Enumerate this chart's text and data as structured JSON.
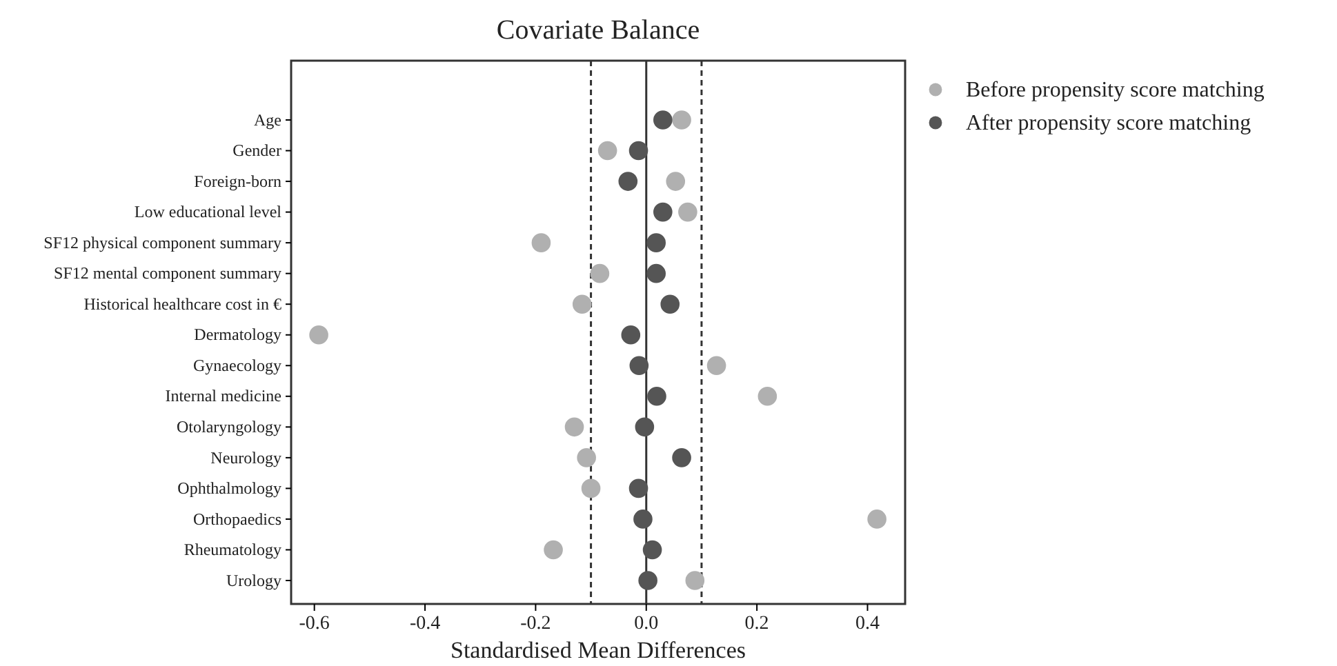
{
  "chart_data": {
    "type": "scatter",
    "title": "Covariate Balance",
    "xlabel": "Standardised Mean Differences",
    "categories": [
      "Age",
      "Gender",
      "Foreign-born",
      "Low educational level",
      "SF12 physical component summary",
      "SF12 mental component summary",
      "Historical healthcare cost in €",
      "Dermatology",
      "Gynaecology",
      "Internal medicine",
      "Otolaryngology",
      "Neurology",
      "Ophthalmology",
      "Orthopaedics",
      "Rheumatology",
      "Urology"
    ],
    "orientation": "horizontal",
    "series": [
      {
        "name": "Before propensity score matching",
        "color": "#b0b0b0",
        "values": [
          0.064,
          -0.07,
          0.053,
          0.075,
          -0.19,
          -0.084,
          -0.116,
          -0.592,
          0.127,
          0.219,
          -0.13,
          -0.108,
          -0.1,
          0.417,
          -0.168,
          0.088
        ]
      },
      {
        "name": "After propensity score matching",
        "color": "#555555",
        "values": [
          0.03,
          -0.014,
          -0.033,
          0.03,
          0.018,
          0.018,
          0.043,
          -0.028,
          -0.013,
          0.019,
          -0.003,
          0.064,
          -0.014,
          -0.006,
          0.011,
          0.003
        ]
      }
    ],
    "xlim": [
      -0.642,
      0.468
    ],
    "xticks": [
      {
        "value": -0.6,
        "label": "-0.6"
      },
      {
        "value": -0.4,
        "label": "-0.4"
      },
      {
        "value": -0.2,
        "label": "-0.2"
      },
      {
        "value": 0,
        "label": "0.0"
      },
      {
        "value": 0.2,
        "label": "0.2"
      },
      {
        "value": 0.4,
        "label": "0.4"
      }
    ],
    "ref_lines": [
      {
        "axis": "x",
        "value": -0.1,
        "line_style": "dashed"
      },
      {
        "axis": "x",
        "value": 0.1,
        "line_style": "dashed"
      },
      {
        "axis": "x",
        "value": 0,
        "line_style": "solid"
      }
    ],
    "marker": "circle",
    "legend": "top right",
    "grid": false
  }
}
